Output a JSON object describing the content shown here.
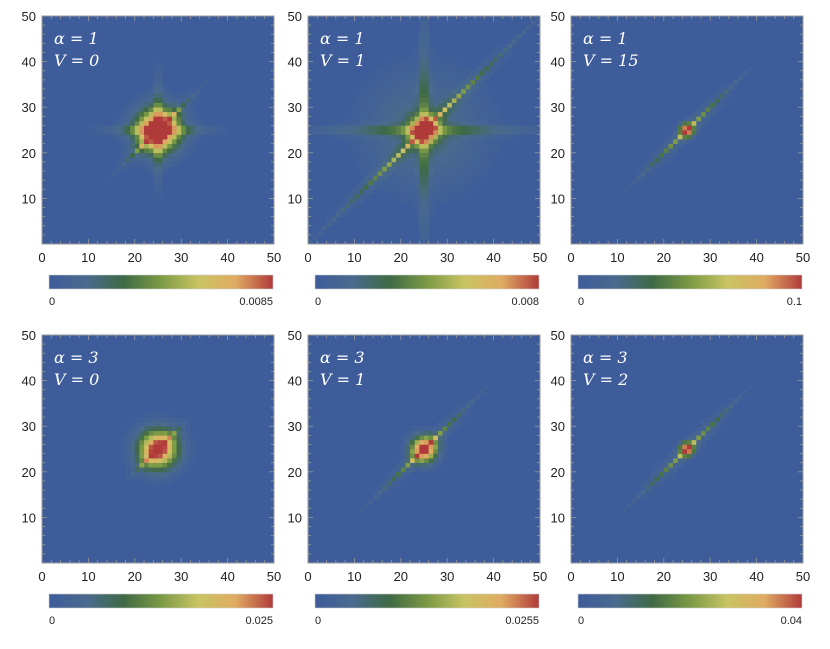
{
  "chart_data": [
    {
      "type": "heatmap",
      "annotations": [
        "α = 1",
        "V = 0"
      ],
      "colorbar": {
        "min_label": "0",
        "max_label": "0.0085"
      },
      "xlim": [
        0,
        50
      ],
      "ylim": [
        0,
        50
      ],
      "xticks": [
        "0",
        "10",
        "20",
        "30",
        "40",
        "50"
      ],
      "yticks": [
        "10",
        "20",
        "30",
        "40",
        "50"
      ],
      "pattern": {
        "center": [
          25,
          25
        ],
        "peak": 0.0085,
        "diagonal_spread": 9,
        "cross_spread": 12,
        "blob_radius": 3
      }
    },
    {
      "type": "heatmap",
      "annotations": [
        "α = 1",
        "V = 1"
      ],
      "colorbar": {
        "min_label": "0",
        "max_label": "0.008"
      },
      "xlim": [
        0,
        50
      ],
      "ylim": [
        0,
        50
      ],
      "xticks": [
        "0",
        "10",
        "20",
        "30",
        "40",
        "50"
      ],
      "yticks": [
        "10",
        "20",
        "30",
        "40",
        "50"
      ],
      "pattern": {
        "center": [
          25,
          25
        ],
        "peak": 0.008,
        "diagonal_spread": 24,
        "cross_spread": 24,
        "blob_radius": 2
      }
    },
    {
      "type": "heatmap",
      "annotations": [
        "α = 1",
        "V = 15"
      ],
      "colorbar": {
        "min_label": "0",
        "max_label": "0.1"
      },
      "xlim": [
        0,
        50
      ],
      "ylim": [
        0,
        50
      ],
      "xticks": [
        "0",
        "10",
        "20",
        "30",
        "40",
        "50"
      ],
      "yticks": [
        "10",
        "20",
        "30",
        "40",
        "50"
      ],
      "pattern": {
        "center": [
          25,
          25
        ],
        "peak": 0.1,
        "diagonal_spread": 12,
        "cross_spread": 0,
        "blob_radius": 1
      }
    },
    {
      "type": "heatmap",
      "annotations": [
        "α = 3",
        "V = 0"
      ],
      "colorbar": {
        "min_label": "0",
        "max_label": "0.025"
      },
      "xlim": [
        0,
        50
      ],
      "ylim": [
        0,
        50
      ],
      "xticks": [
        "0",
        "10",
        "20",
        "30",
        "40",
        "50"
      ],
      "yticks": [
        "10",
        "20",
        "30",
        "40",
        "50"
      ],
      "pattern": {
        "center": [
          25,
          25
        ],
        "peak": 0.025,
        "diagonal_spread": 6,
        "cross_spread": 0,
        "blob_radius": 3
      }
    },
    {
      "type": "heatmap",
      "annotations": [
        "α = 3",
        "V = 1"
      ],
      "colorbar": {
        "min_label": "0",
        "max_label": "0.0255"
      },
      "xlim": [
        0,
        50
      ],
      "ylim": [
        0,
        50
      ],
      "xticks": [
        "0",
        "10",
        "20",
        "30",
        "40",
        "50"
      ],
      "yticks": [
        "10",
        "20",
        "30",
        "40",
        "50"
      ],
      "pattern": {
        "center": [
          25,
          25
        ],
        "peak": 0.0255,
        "diagonal_spread": 12,
        "cross_spread": 0,
        "blob_radius": 2
      }
    },
    {
      "type": "heatmap",
      "annotations": [
        "α = 3",
        "V = 2"
      ],
      "colorbar": {
        "min_label": "0",
        "max_label": "0.04"
      },
      "xlim": [
        0,
        50
      ],
      "ylim": [
        0,
        50
      ],
      "xticks": [
        "0",
        "10",
        "20",
        "30",
        "40",
        "50"
      ],
      "yticks": [
        "10",
        "20",
        "30",
        "40",
        "50"
      ],
      "pattern": {
        "center": [
          25,
          25
        ],
        "peak": 0.04,
        "diagonal_spread": 12,
        "cross_spread": 0,
        "blob_radius": 1
      }
    }
  ],
  "colors": {
    "background": "#3e5c9a",
    "colormap": [
      "#3e5c9a",
      "#4a6a8e",
      "#3f6a45",
      "#7c9a45",
      "#c9c463",
      "#e0ab63",
      "#b03a3a"
    ],
    "frame": "#9a9a9a"
  }
}
